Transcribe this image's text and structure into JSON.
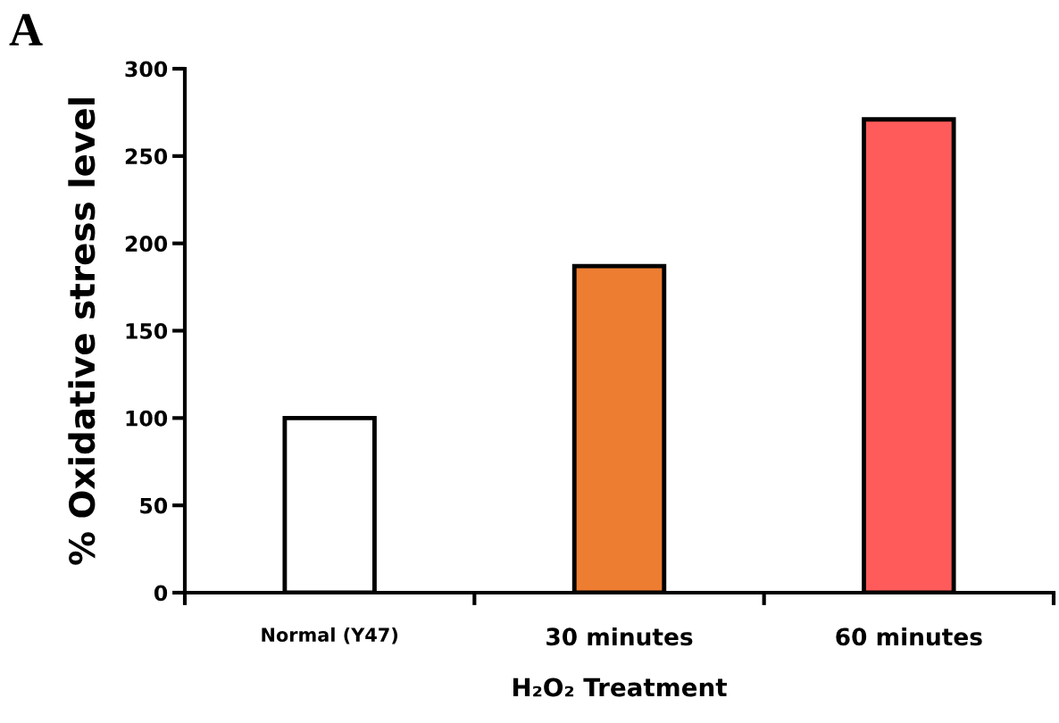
{
  "chart_data": {
    "type": "bar",
    "xlabel": "H₂O₂ Treatment",
    "ylabel": "% Oxidative stress level",
    "categories": [
      "Normal (Y47)",
      "30 minutes",
      "60 minutes"
    ],
    "values": [
      100,
      187,
      271
    ],
    "colors": [
      "#ffffff",
      "#ed7d31",
      "#ff5b5b"
    ],
    "ylim": [
      0,
      300
    ],
    "yticks": [
      0,
      50,
      100,
      150,
      200,
      250,
      300
    ],
    "grid": false,
    "annotations": [
      "A"
    ]
  }
}
